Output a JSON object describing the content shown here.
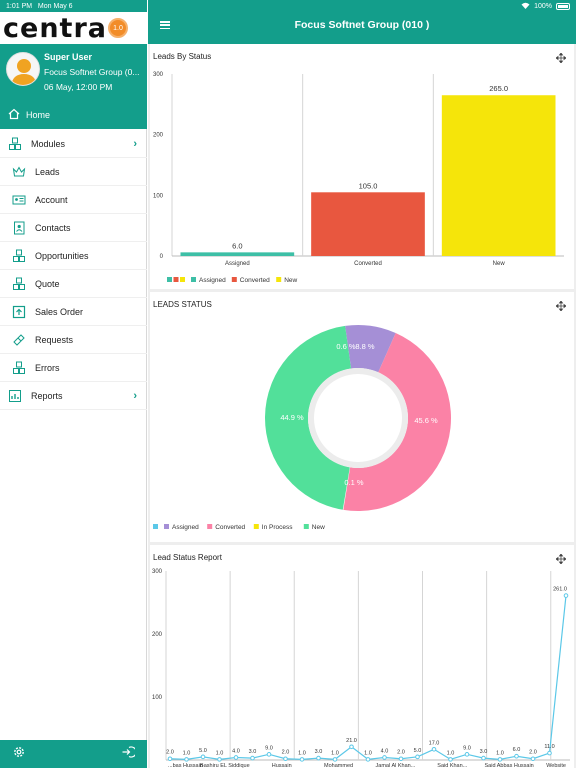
{
  "status_bar": {
    "time": "1:01 PM",
    "date": "Mon May 6",
    "battery": "100%"
  },
  "app": {
    "logo_text": "centra",
    "logo_badge": "1.0"
  },
  "user": {
    "name": "Super User",
    "company": "Focus Softnet Group (0...",
    "datetime": "06 May, 12:00 PM"
  },
  "header": {
    "title": "Focus Softnet Group (010 )"
  },
  "sidebar": {
    "home": {
      "label": "Home",
      "icon": "home-icon"
    },
    "items": [
      {
        "label": "Modules",
        "icon": "cubes-icon",
        "expandable": true,
        "level": "top"
      },
      {
        "label": "Leads",
        "icon": "crown-icon",
        "level": "sub"
      },
      {
        "label": "Account",
        "icon": "id-card-icon",
        "level": "sub"
      },
      {
        "label": "Contacts",
        "icon": "contact-book-icon",
        "level": "sub"
      },
      {
        "label": "Opportunities",
        "icon": "cubes-icon",
        "level": "sub"
      },
      {
        "label": "Quote",
        "icon": "cubes-icon",
        "level": "sub"
      },
      {
        "label": "Sales Order",
        "icon": "upload-box-icon",
        "level": "sub"
      },
      {
        "label": "Requests",
        "icon": "ticket-icon",
        "level": "sub"
      },
      {
        "label": "Errors",
        "icon": "cubes-icon",
        "level": "sub"
      },
      {
        "label": "Reports",
        "icon": "report-icon",
        "expandable": true,
        "level": "top"
      }
    ]
  },
  "colors": {
    "accent": "#139e8b",
    "assigned": "#3dbfa6",
    "converted": "#e8573f",
    "new": "#f5e50a",
    "pie_assigned": "#a58fd6",
    "pie_converted": "#fb82a6",
    "pie_new": "#52e09a",
    "pie_inprocess": "#f5e50a",
    "line": "#5bc8e8"
  },
  "cards": {
    "bar_title": "Leads By Status",
    "pie_title": "LEADS STATUS",
    "line_title": "Lead Status Report"
  },
  "chart_data": [
    {
      "type": "bar",
      "title": "Leads By Status",
      "categories": [
        "Assigned",
        "Converted",
        "New"
      ],
      "values": [
        6.0,
        105.0,
        265.0
      ],
      "value_labels": [
        "6.0",
        "105.0",
        "265.0"
      ],
      "yticks": [
        "0",
        "100",
        "200",
        "300"
      ],
      "ylim": [
        0,
        300
      ],
      "legend": [
        "Assigned",
        "Converted",
        "New"
      ],
      "legend_placement": "bottom-left",
      "grid": true
    },
    {
      "type": "pie",
      "title": "LEADS STATUS",
      "labels": [
        "Assigned",
        "Converted",
        "In Process",
        "New"
      ],
      "values": [
        8.8,
        45.6,
        0.1,
        44.9
      ],
      "value_labels": [
        "8.8 %",
        "45.6 %",
        "0.1 %",
        "44.9 %"
      ],
      "extra_label": "0.6 %",
      "legend_placement": "bottom-left"
    },
    {
      "type": "line",
      "title": "Lead Status Report",
      "values": [
        2.0,
        1.0,
        5.0,
        1.0,
        4.0,
        3.0,
        9.0,
        2.0,
        1.0,
        3.0,
        1.0,
        21.0,
        1.0,
        4.0,
        2.0,
        5.0,
        17.0,
        1.0,
        9.0,
        3.0,
        1.0,
        6.0,
        2.0,
        11.0,
        261.0
      ],
      "value_labels": [
        "2.0",
        "1.0",
        "5.0",
        "1.0",
        "4.0",
        "3.0",
        "9.0",
        "2.0",
        "1.0",
        "3.0",
        "1.0",
        "21.0",
        "1.0",
        "4.0",
        "2.0",
        "5.0",
        "17.0",
        "1.0",
        "9.0",
        "3.0",
        "1.0",
        "6.0",
        "2.0",
        "11.0",
        "261.0"
      ],
      "x_labels": [
        "...bas Hussain",
        "Bashiru EL Siddique",
        "Hussain",
        "Mohammed",
        "Jamal Al Khan...",
        "Said Khan...",
        "Said Abbas Hussain",
        "Website"
      ],
      "yticks": [
        "0",
        "100",
        "200",
        "300"
      ],
      "ylim": [
        0,
        300
      ],
      "grid": true
    }
  ]
}
